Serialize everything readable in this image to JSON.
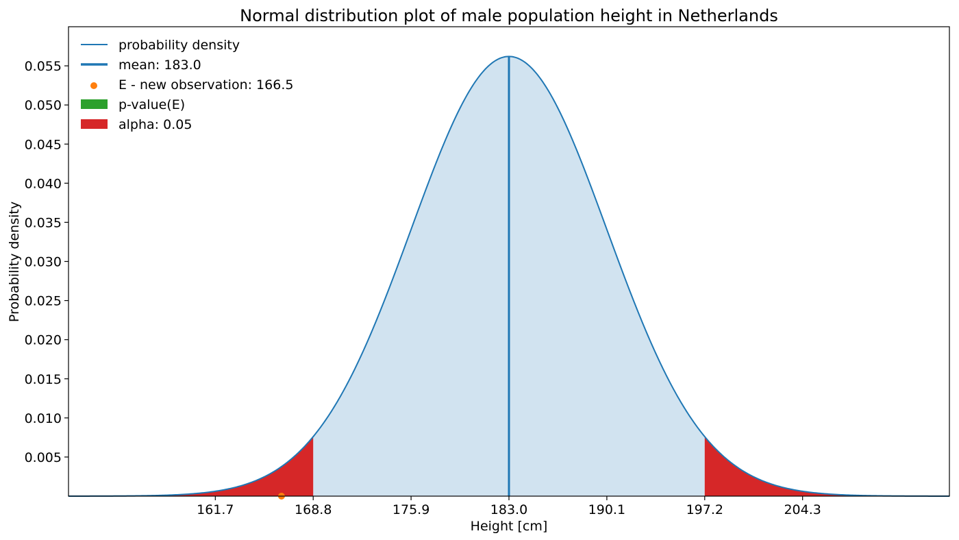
{
  "chart_data": {
    "type": "area",
    "title": "Normal distribution plot of male population height in Netherlands",
    "xlabel": "Height [cm]",
    "ylabel": "Probability density",
    "xlim": [
      151.05,
      214.95
    ],
    "ylim": [
      0,
      0.06
    ],
    "x_ticks": [
      "161.7",
      "168.8",
      "175.9",
      "183.0",
      "190.1",
      "197.2",
      "204.3"
    ],
    "y_ticks": [
      "0.005",
      "0.010",
      "0.015",
      "0.020",
      "0.025",
      "0.030",
      "0.035",
      "0.040",
      "0.045",
      "0.050",
      "0.055"
    ],
    "distribution": {
      "mean": 183.0,
      "std": 7.1,
      "peak_density": 0.0562
    },
    "mean_line": {
      "x": 183.0
    },
    "observation": {
      "x": 166.5,
      "y": 0
    },
    "rejection_region": {
      "lower": 168.8,
      "upper": 197.2
    },
    "legend_position": "upper-left",
    "legend": [
      {
        "label": "probability density",
        "kind": "line",
        "color": "#1f77b4"
      },
      {
        "label": "mean: 183.0",
        "kind": "thick-line",
        "color": "#1f77b4"
      },
      {
        "label": "E - new observation: 166.5",
        "kind": "dot",
        "color": "#ff7f0e"
      },
      {
        "label": "p-value(E)",
        "kind": "patch",
        "color": "#2ca02c"
      },
      {
        "label": "alpha: 0.05",
        "kind": "patch",
        "color": "#d62728"
      }
    ],
    "colors": {
      "density": "#1f77b4",
      "fill": "#d1e3f0",
      "alpha": "#d62728",
      "observation": "#ff7f0e"
    }
  }
}
